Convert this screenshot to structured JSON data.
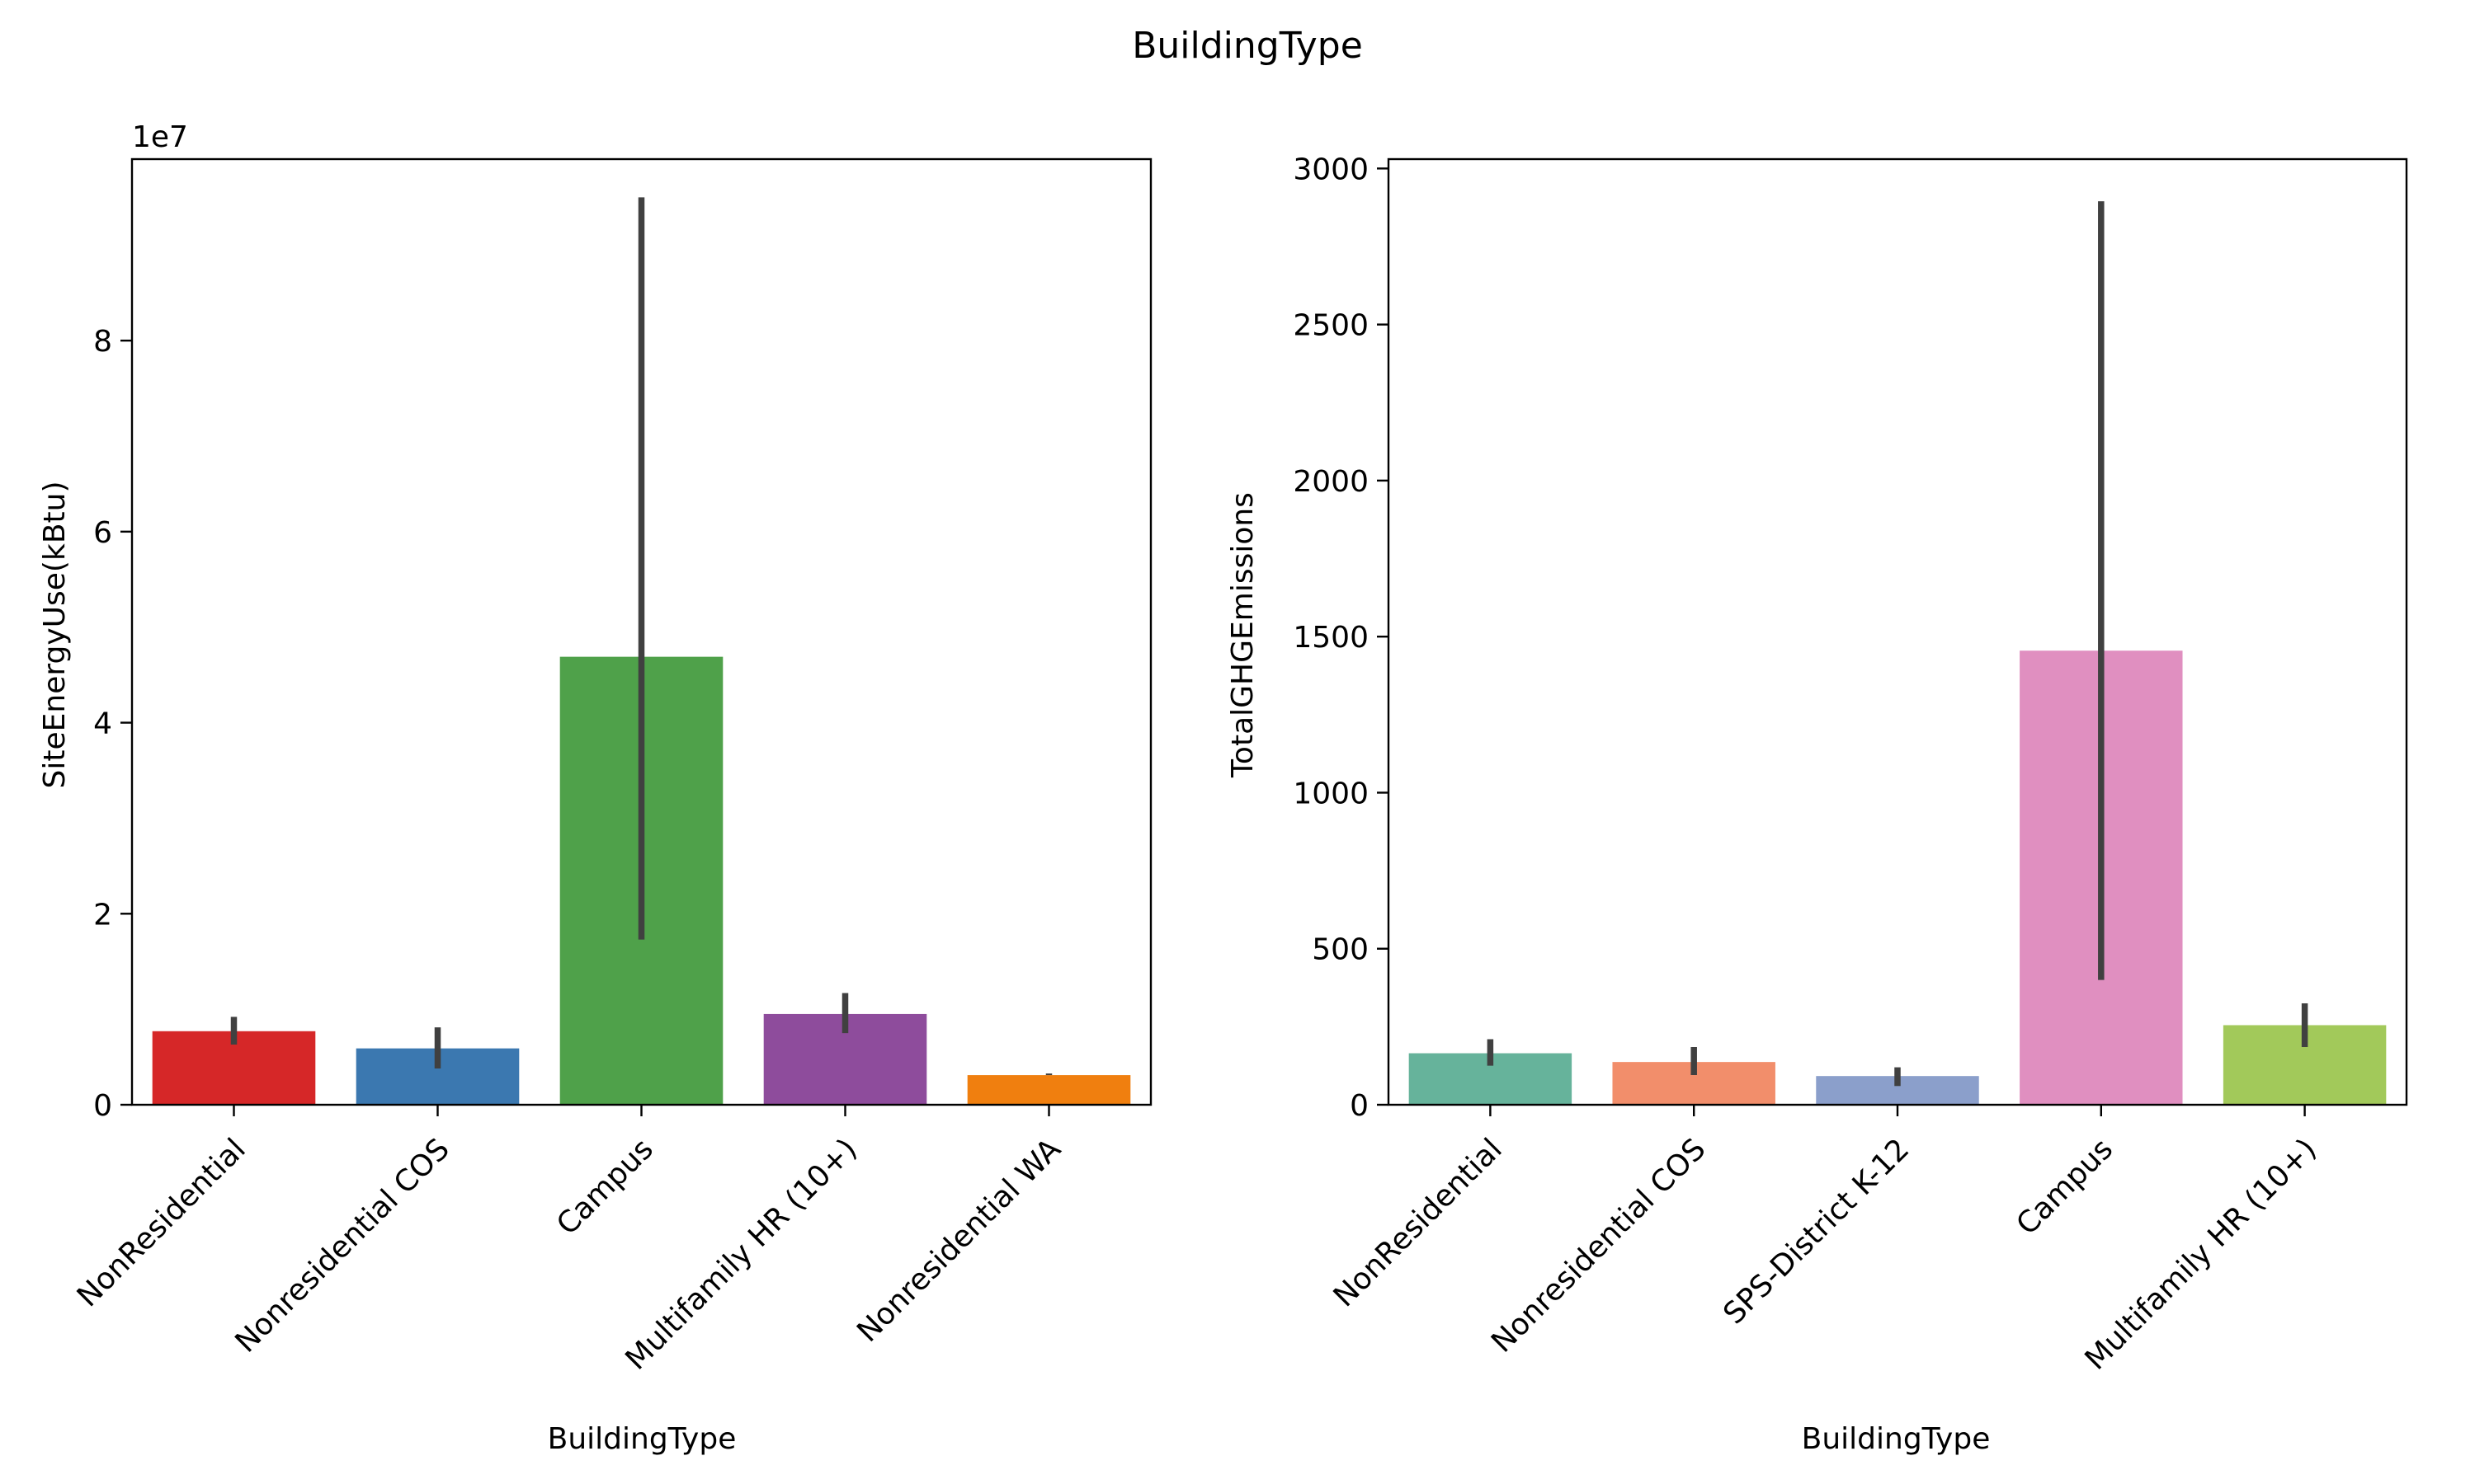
{
  "figure": {
    "suptitle": "BuildingType"
  },
  "chart_data": [
    {
      "type": "bar",
      "xlabel": "BuildingType",
      "ylabel": "SiteEnergyUse(kBtu)",
      "offset_label": "1e7",
      "ylim": [
        0,
        9.9
      ],
      "yticks": [
        0,
        2,
        4,
        6,
        8
      ],
      "ytick_labels": [
        "0",
        "2",
        "4",
        "6",
        "8"
      ],
      "categories": [
        "NonResidential",
        "Nonresidential COS",
        "Campus",
        "Multifamily HR (10+)",
        "Nonresidential WA"
      ],
      "values": [
        0.77,
        0.59,
        4.69,
        0.95,
        0.31
      ],
      "error_low": [
        0.63,
        0.38,
        1.73,
        0.75,
        0.31
      ],
      "error_high": [
        0.92,
        0.81,
        9.5,
        1.17,
        0.31
      ],
      "colors": [
        "#d62728",
        "#3b78b0",
        "#4fa14a",
        "#8e4c9c",
        "#f07f0f"
      ],
      "grid": false,
      "legend": "none"
    },
    {
      "type": "bar",
      "xlabel": "BuildingType",
      "ylabel": "TotalGHGEmissions",
      "offset_label": "",
      "ylim": [
        0,
        3030
      ],
      "yticks": [
        0,
        500,
        1000,
        1500,
        2000,
        2500,
        3000
      ],
      "ytick_labels": [
        "0",
        "500",
        "1000",
        "1500",
        "2000",
        "2500",
        "3000"
      ],
      "categories": [
        "NonResidential",
        "Nonresidential COS",
        "SPS-District K-12",
        "Campus",
        "Multifamily HR (10+)"
      ],
      "values": [
        165,
        137,
        92,
        1455,
        255
      ],
      "error_low": [
        125,
        95,
        60,
        400,
        185
      ],
      "error_high": [
        210,
        185,
        120,
        2895,
        325
      ],
      "colors": [
        "#66b39b",
        "#f28e6b",
        "#8b9fcb",
        "#e08fc0",
        "#a2c95a"
      ],
      "grid": false,
      "legend": "none"
    }
  ]
}
